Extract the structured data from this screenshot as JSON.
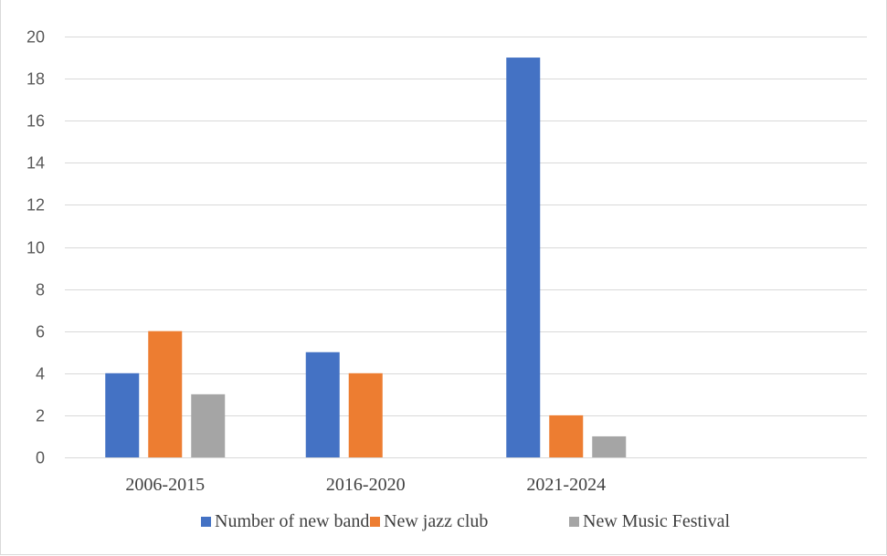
{
  "chart_data": {
    "type": "bar",
    "title": "",
    "xlabel": "",
    "ylabel": "",
    "categories": [
      "2006-2015",
      "2016-2020",
      "2021-2024",
      ""
    ],
    "series": [
      {
        "name": "Number of new bands",
        "values": [
          4,
          5,
          19,
          null
        ],
        "color": "#4472c4"
      },
      {
        "name": "New jazz club",
        "values": [
          6,
          4,
          2,
          null
        ],
        "color": "#ed7d31"
      },
      {
        "name": "New Music Festival",
        "values": [
          3,
          0,
          1,
          null
        ],
        "color": "#a5a5a5"
      }
    ],
    "ylim": [
      0,
      20
    ],
    "yticks": [
      0,
      2,
      4,
      6,
      8,
      10,
      12,
      14,
      16,
      18,
      20
    ],
    "grid": true,
    "legend_position": "bottom"
  }
}
